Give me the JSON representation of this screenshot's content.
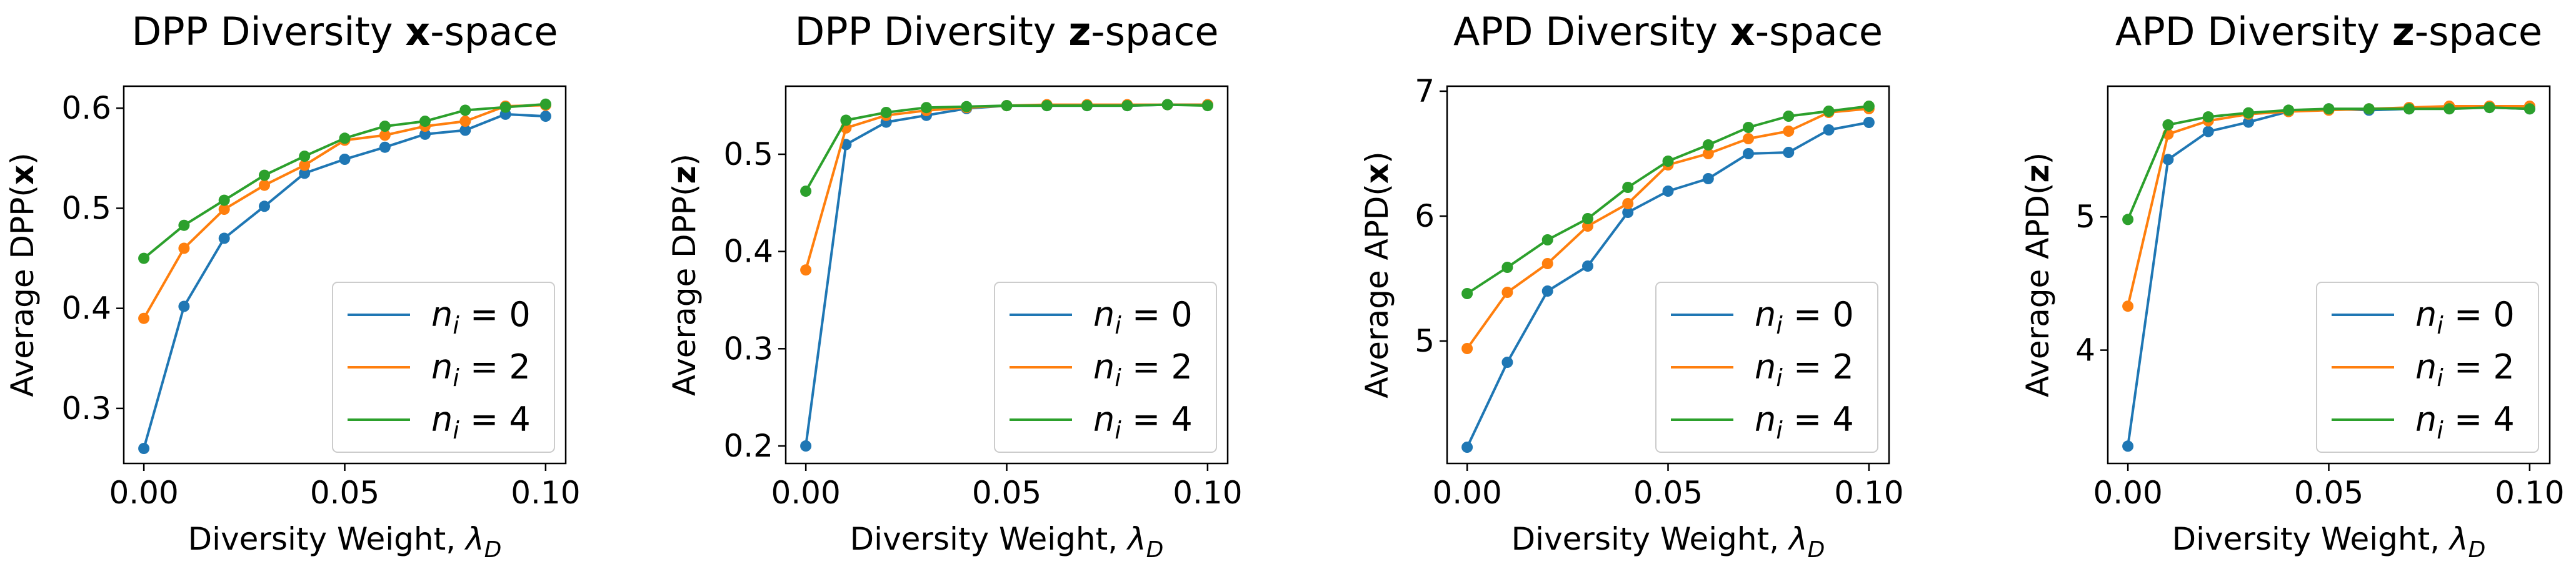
{
  "chart_data": [
    {
      "type": "line",
      "title": "DPP Diversity x-space",
      "title_parts": [
        "DPP Diversity ",
        "x",
        "-space"
      ],
      "xlabel": "Diversity Weight, λ",
      "xlabel_parts": [
        "Diversity Weight, ",
        "λ",
        "D"
      ],
      "ylabel": "Average DPP(x)",
      "ylabel_parts": [
        "Average DPP(",
        "x",
        ")"
      ],
      "x": [
        0.0,
        0.01,
        0.02,
        0.03,
        0.04,
        0.05,
        0.06,
        0.07,
        0.08,
        0.09,
        0.1
      ],
      "xlim": [
        -0.005,
        0.105
      ],
      "ylim": [
        0.245,
        0.622
      ],
      "xticks": [
        "0.00",
        "0.05",
        "0.10"
      ],
      "xtick_values": [
        0.0,
        0.05,
        0.1
      ],
      "yticks": [
        "0.3",
        "0.4",
        "0.5",
        "0.6"
      ],
      "ytick_values": [
        0.3,
        0.4,
        0.5,
        0.6
      ],
      "legend_position": "lower-right",
      "series": [
        {
          "name": "n_i = 0",
          "color": "#1f77b4",
          "values": [
            0.26,
            0.402,
            0.47,
            0.502,
            0.535,
            0.549,
            0.561,
            0.574,
            0.578,
            0.594,
            0.592
          ]
        },
        {
          "name": "n_i = 2",
          "color": "#ff7f0e",
          "values": [
            0.39,
            0.46,
            0.499,
            0.523,
            0.543,
            0.568,
            0.573,
            0.582,
            0.587,
            0.602,
            0.603
          ]
        },
        {
          "name": "n_i = 4",
          "color": "#2ca02c",
          "values": [
            0.45,
            0.483,
            0.508,
            0.533,
            0.552,
            0.57,
            0.582,
            0.587,
            0.598,
            0.601,
            0.604
          ]
        }
      ]
    },
    {
      "type": "line",
      "title": "DPP Diversity z-space",
      "title_parts": [
        "DPP Diversity ",
        "z",
        "-space"
      ],
      "xlabel": "Diversity Weight, λ",
      "xlabel_parts": [
        "Diversity Weight, ",
        "λ",
        "D"
      ],
      "ylabel": "Average DPP(z)",
      "ylabel_parts": [
        "Average DPP(",
        "z",
        ")"
      ],
      "x": [
        0.0,
        0.01,
        0.02,
        0.03,
        0.04,
        0.05,
        0.06,
        0.07,
        0.08,
        0.09,
        0.1
      ],
      "xlim": [
        -0.005,
        0.105
      ],
      "ylim": [
        0.182,
        0.57
      ],
      "xticks": [
        "0.00",
        "0.05",
        "0.10"
      ],
      "xtick_values": [
        0.0,
        0.05,
        0.1
      ],
      "yticks": [
        "0.2",
        "0.3",
        "0.4",
        "0.5"
      ],
      "ytick_values": [
        0.2,
        0.3,
        0.4,
        0.5
      ],
      "legend_position": "lower-right",
      "series": [
        {
          "name": "n_i = 0",
          "color": "#1f77b4",
          "values": [
            0.2,
            0.51,
            0.533,
            0.54,
            0.547,
            0.55,
            0.55,
            0.55,
            0.55,
            0.551,
            0.551
          ]
        },
        {
          "name": "n_i = 2",
          "color": "#ff7f0e",
          "values": [
            0.381,
            0.527,
            0.54,
            0.545,
            0.548,
            0.55,
            0.551,
            0.551,
            0.551,
            0.551,
            0.551
          ]
        },
        {
          "name": "n_i = 4",
          "color": "#2ca02c",
          "values": [
            0.462,
            0.535,
            0.543,
            0.548,
            0.549,
            0.55,
            0.55,
            0.55,
            0.55,
            0.551,
            0.55
          ]
        }
      ]
    },
    {
      "type": "line",
      "title": "APD Diversity x-space",
      "title_parts": [
        "APD Diversity ",
        "x",
        "-space"
      ],
      "xlabel": "Diversity Weight, λ",
      "xlabel_parts": [
        "Diversity Weight, ",
        "λ",
        "D"
      ],
      "ylabel": "Average APD(x)",
      "ylabel_parts": [
        "Average APD(",
        "x",
        ")"
      ],
      "x": [
        0.0,
        0.01,
        0.02,
        0.03,
        0.04,
        0.05,
        0.06,
        0.07,
        0.08,
        0.09,
        0.1
      ],
      "xlim": [
        -0.005,
        0.105
      ],
      "ylim": [
        4.02,
        7.04
      ],
      "xticks": [
        "0.00",
        "0.05",
        "0.10"
      ],
      "xtick_values": [
        0.0,
        0.05,
        0.1
      ],
      "yticks": [
        "5",
        "6",
        "7"
      ],
      "ytick_values": [
        5,
        6,
        7
      ],
      "legend_position": "lower-right",
      "series": [
        {
          "name": "n_i = 0",
          "color": "#1f77b4",
          "values": [
            4.15,
            4.83,
            5.4,
            5.6,
            6.03,
            6.2,
            6.3,
            6.5,
            6.51,
            6.69,
            6.75
          ]
        },
        {
          "name": "n_i = 2",
          "color": "#ff7f0e",
          "values": [
            4.94,
            5.39,
            5.62,
            5.92,
            6.1,
            6.41,
            6.5,
            6.62,
            6.68,
            6.83,
            6.86
          ]
        },
        {
          "name": "n_i = 4",
          "color": "#2ca02c",
          "values": [
            5.38,
            5.59,
            5.81,
            5.98,
            6.23,
            6.44,
            6.57,
            6.71,
            6.8,
            6.84,
            6.88
          ]
        }
      ]
    },
    {
      "type": "line",
      "title": "APD Diversity z-space",
      "title_parts": [
        "APD Diversity ",
        "z",
        "-space"
      ],
      "xlabel": "Diversity Weight, λ",
      "xlabel_parts": [
        "Diversity Weight, ",
        "λ",
        "D"
      ],
      "ylabel": "Average APD(z)",
      "ylabel_parts": [
        "Average APD(",
        "z",
        ")"
      ],
      "x": [
        0.0,
        0.01,
        0.02,
        0.03,
        0.04,
        0.05,
        0.06,
        0.07,
        0.08,
        0.09,
        0.1
      ],
      "xlim": [
        -0.005,
        0.105
      ],
      "ylim": [
        3.15,
        5.98
      ],
      "xticks": [
        "0.00",
        "0.05",
        "0.10"
      ],
      "xtick_values": [
        0.0,
        0.05,
        0.1
      ],
      "yticks": [
        "4",
        "5"
      ],
      "ytick_values": [
        4,
        5
      ],
      "legend_position": "lower-right",
      "series": [
        {
          "name": "n_i = 0",
          "color": "#1f77b4",
          "values": [
            3.28,
            5.43,
            5.64,
            5.71,
            5.79,
            5.81,
            5.8,
            5.81,
            5.82,
            5.82,
            5.81
          ]
        },
        {
          "name": "n_i = 2",
          "color": "#ff7f0e",
          "values": [
            4.33,
            5.62,
            5.72,
            5.77,
            5.79,
            5.8,
            5.81,
            5.82,
            5.83,
            5.83,
            5.83
          ]
        },
        {
          "name": "n_i = 4",
          "color": "#2ca02c",
          "values": [
            4.98,
            5.69,
            5.75,
            5.78,
            5.8,
            5.81,
            5.81,
            5.81,
            5.81,
            5.82,
            5.81
          ]
        }
      ]
    }
  ]
}
